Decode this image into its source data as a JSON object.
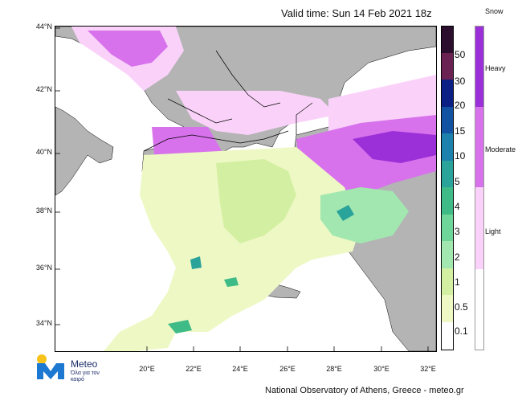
{
  "header": {
    "valid_time": "Valid time: Sun 14 Feb 2021 18z"
  },
  "map": {
    "lat_labels": [
      "44°N",
      "42°N",
      "40°N",
      "38°N",
      "36°N",
      "34°N"
    ],
    "lon_labels": [
      "20°E",
      "22°E",
      "24°E",
      "26°E",
      "28°E",
      "30°E",
      "32°E"
    ],
    "colors": {
      "sea": "#ffffff",
      "land": "#b4b4b4",
      "border": "#000000"
    }
  },
  "rain_scale": {
    "labels": [
      "50",
      "30",
      "20",
      "15",
      "10",
      "5",
      "4",
      "3",
      "2",
      "1",
      "0.5",
      "0.1"
    ],
    "colors": [
      "#2b0d2e",
      "#6b2152",
      "#0c1f85",
      "#1252a3",
      "#1d81ad",
      "#2aa39a",
      "#3fbb87",
      "#6fd69a",
      "#a2e7b0",
      "#d3f0a2",
      "#eef8c4",
      "#ffffff"
    ]
  },
  "snow_scale": {
    "title": "Snow",
    "labels": [
      "Heavy",
      "Moderate",
      "Light"
    ],
    "colors": [
      "#9c30d8",
      "#d772ec",
      "#fad2f9"
    ]
  },
  "logo": {
    "name": "Meteo",
    "tagline": "Όλα για τον καιρό"
  },
  "footer": {
    "credit": "National Observatory of Athens, Greece - meteo.gr"
  }
}
